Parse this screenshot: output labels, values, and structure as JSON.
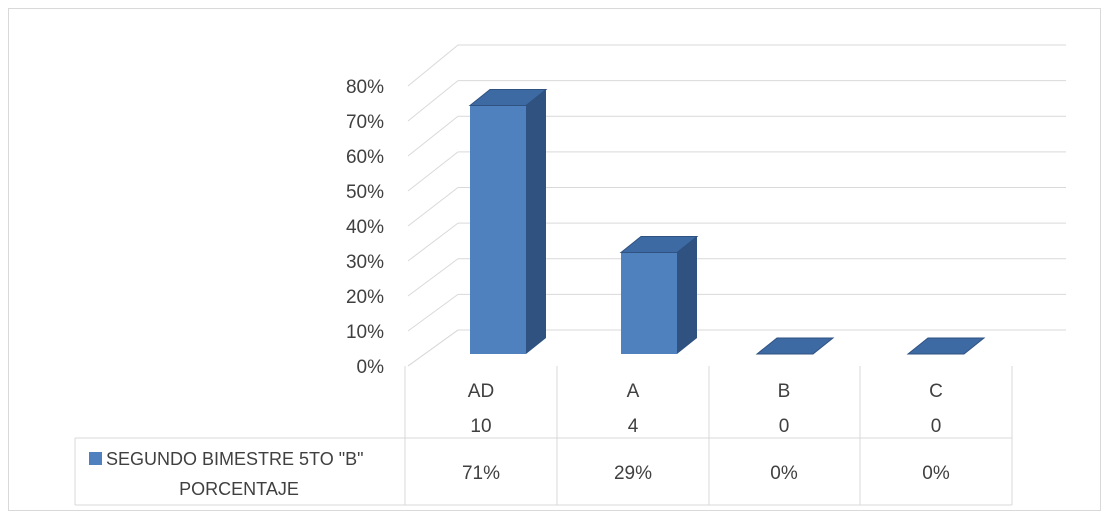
{
  "chart_data": {
    "type": "bar",
    "categories": [
      "AD",
      "A",
      "B",
      "C"
    ],
    "table_rows": [
      {
        "values": [
          "10",
          "4",
          "0",
          "0"
        ]
      }
    ],
    "series": [
      {
        "name": "SEGUNDO BIMESTRE 5TO \"B\" PORCENTAJE",
        "name_lines": [
          "SEGUNDO BIMESTRE 5TO \"B\"",
          "PORCENTAJE"
        ],
        "values": [
          0.71,
          0.29,
          0.0,
          0.0
        ],
        "labels": [
          "71%",
          "29%",
          "0%",
          "0%"
        ]
      }
    ],
    "y_ticks": [
      "0%",
      "10%",
      "20%",
      "30%",
      "40%",
      "50%",
      "60%",
      "70%",
      "80%"
    ],
    "ylim": [
      0,
      0.8
    ],
    "grid": true,
    "legend": "data-table",
    "three_d": true,
    "colors": {
      "bar_front": "#4e81bd",
      "bar_side": "#2f5281",
      "bar_top": "#3e6aa3",
      "grid": "#d9d9d9",
      "text": "#404040"
    }
  }
}
